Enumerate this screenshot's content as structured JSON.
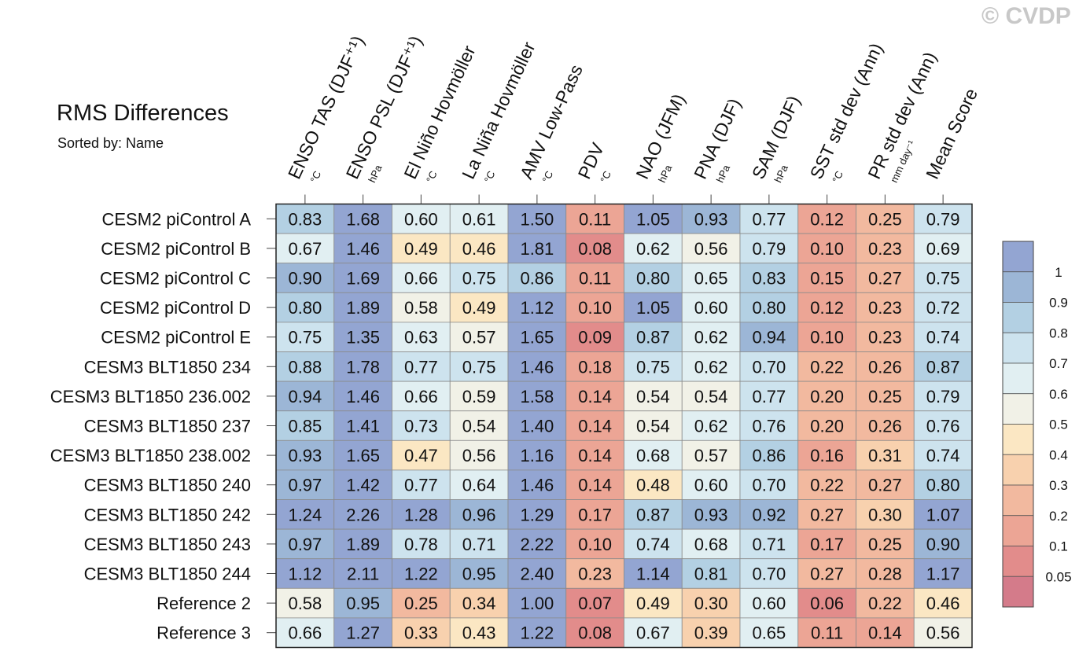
{
  "title": "RMS Differences",
  "subtitle": "Sorted by: Name",
  "watermark": "© CVDP",
  "chart_data": {
    "type": "heatmap",
    "columns": [
      {
        "label": "ENSO TAS (DJF⁺¹)",
        "unit": "°C"
      },
      {
        "label": "ENSO PSL (DJF⁺¹)",
        "unit": "hPa"
      },
      {
        "label": "El Niño Hovmöller",
        "unit": "°C"
      },
      {
        "label": "La Niña Hovmöller",
        "unit": "°C"
      },
      {
        "label": "AMV Low-Pass",
        "unit": "°C"
      },
      {
        "label": "PDV",
        "unit": "°C"
      },
      {
        "label": "NAO (JFM)",
        "unit": "hPa"
      },
      {
        "label": "PNA (DJF)",
        "unit": "hPa"
      },
      {
        "label": "SAM (DJF)",
        "unit": "hPa"
      },
      {
        "label": "SST std dev (Ann)",
        "unit": "°C"
      },
      {
        "label": "PR std dev (Ann)",
        "unit": "mm day⁻¹"
      },
      {
        "label": "Mean Score",
        "unit": ""
      }
    ],
    "rows": [
      {
        "name": "CESM2 piControl A",
        "values": [
          "0.83",
          "1.68",
          "0.60",
          "0.61",
          "1.50",
          "0.11",
          "1.05",
          "0.93",
          "0.77",
          "0.12",
          "0.25",
          "0.79"
        ]
      },
      {
        "name": "CESM2 piControl B",
        "values": [
          "0.67",
          "1.46",
          "0.49",
          "0.46",
          "1.81",
          "0.08",
          "0.62",
          "0.56",
          "0.79",
          "0.10",
          "0.23",
          "0.69"
        ]
      },
      {
        "name": "CESM2 piControl C",
        "values": [
          "0.90",
          "1.69",
          "0.66",
          "0.75",
          "0.86",
          "0.11",
          "0.80",
          "0.65",
          "0.83",
          "0.15",
          "0.27",
          "0.75"
        ]
      },
      {
        "name": "CESM2 piControl D",
        "values": [
          "0.80",
          "1.89",
          "0.58",
          "0.49",
          "1.12",
          "0.10",
          "1.05",
          "0.60",
          "0.80",
          "0.12",
          "0.23",
          "0.72"
        ]
      },
      {
        "name": "CESM2 piControl E",
        "values": [
          "0.75",
          "1.35",
          "0.63",
          "0.57",
          "1.65",
          "0.09",
          "0.87",
          "0.62",
          "0.94",
          "0.10",
          "0.23",
          "0.74"
        ]
      },
      {
        "name": "CESM3 BLT1850 234",
        "values": [
          "0.88",
          "1.78",
          "0.77",
          "0.75",
          "1.46",
          "0.18",
          "0.75",
          "0.62",
          "0.70",
          "0.22",
          "0.26",
          "0.87"
        ]
      },
      {
        "name": "CESM3 BLT1850 236.002",
        "values": [
          "0.94",
          "1.46",
          "0.66",
          "0.59",
          "1.58",
          "0.14",
          "0.54",
          "0.54",
          "0.77",
          "0.20",
          "0.25",
          "0.79"
        ]
      },
      {
        "name": "CESM3 BLT1850 237",
        "values": [
          "0.85",
          "1.41",
          "0.73",
          "0.54",
          "1.40",
          "0.14",
          "0.54",
          "0.62",
          "0.76",
          "0.20",
          "0.26",
          "0.76"
        ]
      },
      {
        "name": "CESM3 BLT1850 238.002",
        "values": [
          "0.93",
          "1.65",
          "0.47",
          "0.56",
          "1.16",
          "0.14",
          "0.68",
          "0.57",
          "0.86",
          "0.16",
          "0.31",
          "0.74"
        ]
      },
      {
        "name": "CESM3 BLT1850 240",
        "values": [
          "0.97",
          "1.42",
          "0.77",
          "0.64",
          "1.46",
          "0.14",
          "0.48",
          "0.60",
          "0.70",
          "0.22",
          "0.27",
          "0.80"
        ]
      },
      {
        "name": "CESM3 BLT1850 242",
        "values": [
          "1.24",
          "2.26",
          "1.28",
          "0.96",
          "1.29",
          "0.17",
          "0.87",
          "0.93",
          "0.92",
          "0.27",
          "0.30",
          "1.07"
        ]
      },
      {
        "name": "CESM3 BLT1850 243",
        "values": [
          "0.97",
          "1.89",
          "0.78",
          "0.71",
          "2.22",
          "0.10",
          "0.74",
          "0.68",
          "0.71",
          "0.17",
          "0.25",
          "0.90"
        ]
      },
      {
        "name": "CESM3 BLT1850 244",
        "values": [
          "1.12",
          "2.11",
          "1.22",
          "0.95",
          "2.40",
          "0.23",
          "1.14",
          "0.81",
          "0.70",
          "0.27",
          "0.28",
          "1.17"
        ]
      },
      {
        "name": "Reference 2",
        "values": [
          "0.58",
          "0.95",
          "0.25",
          "0.34",
          "1.00",
          "0.07",
          "0.49",
          "0.30",
          "0.60",
          "0.06",
          "0.22",
          "0.46"
        ]
      },
      {
        "name": "Reference 3",
        "values": [
          "0.66",
          "1.27",
          "0.33",
          "0.43",
          "1.22",
          "0.08",
          "0.67",
          "0.39",
          "0.65",
          "0.11",
          "0.14",
          "0.56"
        ]
      }
    ],
    "colorbar": {
      "levels": [
        "1",
        "0.9",
        "0.8",
        "0.7",
        "0.6",
        "0.5",
        "0.4",
        "0.3",
        "0.2",
        "0.1",
        "0.05"
      ],
      "thresholds": [
        0.05,
        0.1,
        0.2,
        0.3,
        0.4,
        0.5,
        0.6,
        0.7,
        0.8,
        0.9,
        1.0
      ],
      "colors": [
        "#d47b8a",
        "#e28c8b",
        "#eca595",
        "#f2b99f",
        "#f8d1ae",
        "#fbe7c3",
        "#f1f1e7",
        "#e1eff2",
        "#cde3ee",
        "#b3d0e3",
        "#9cb6d6",
        "#93a5d2"
      ]
    }
  }
}
